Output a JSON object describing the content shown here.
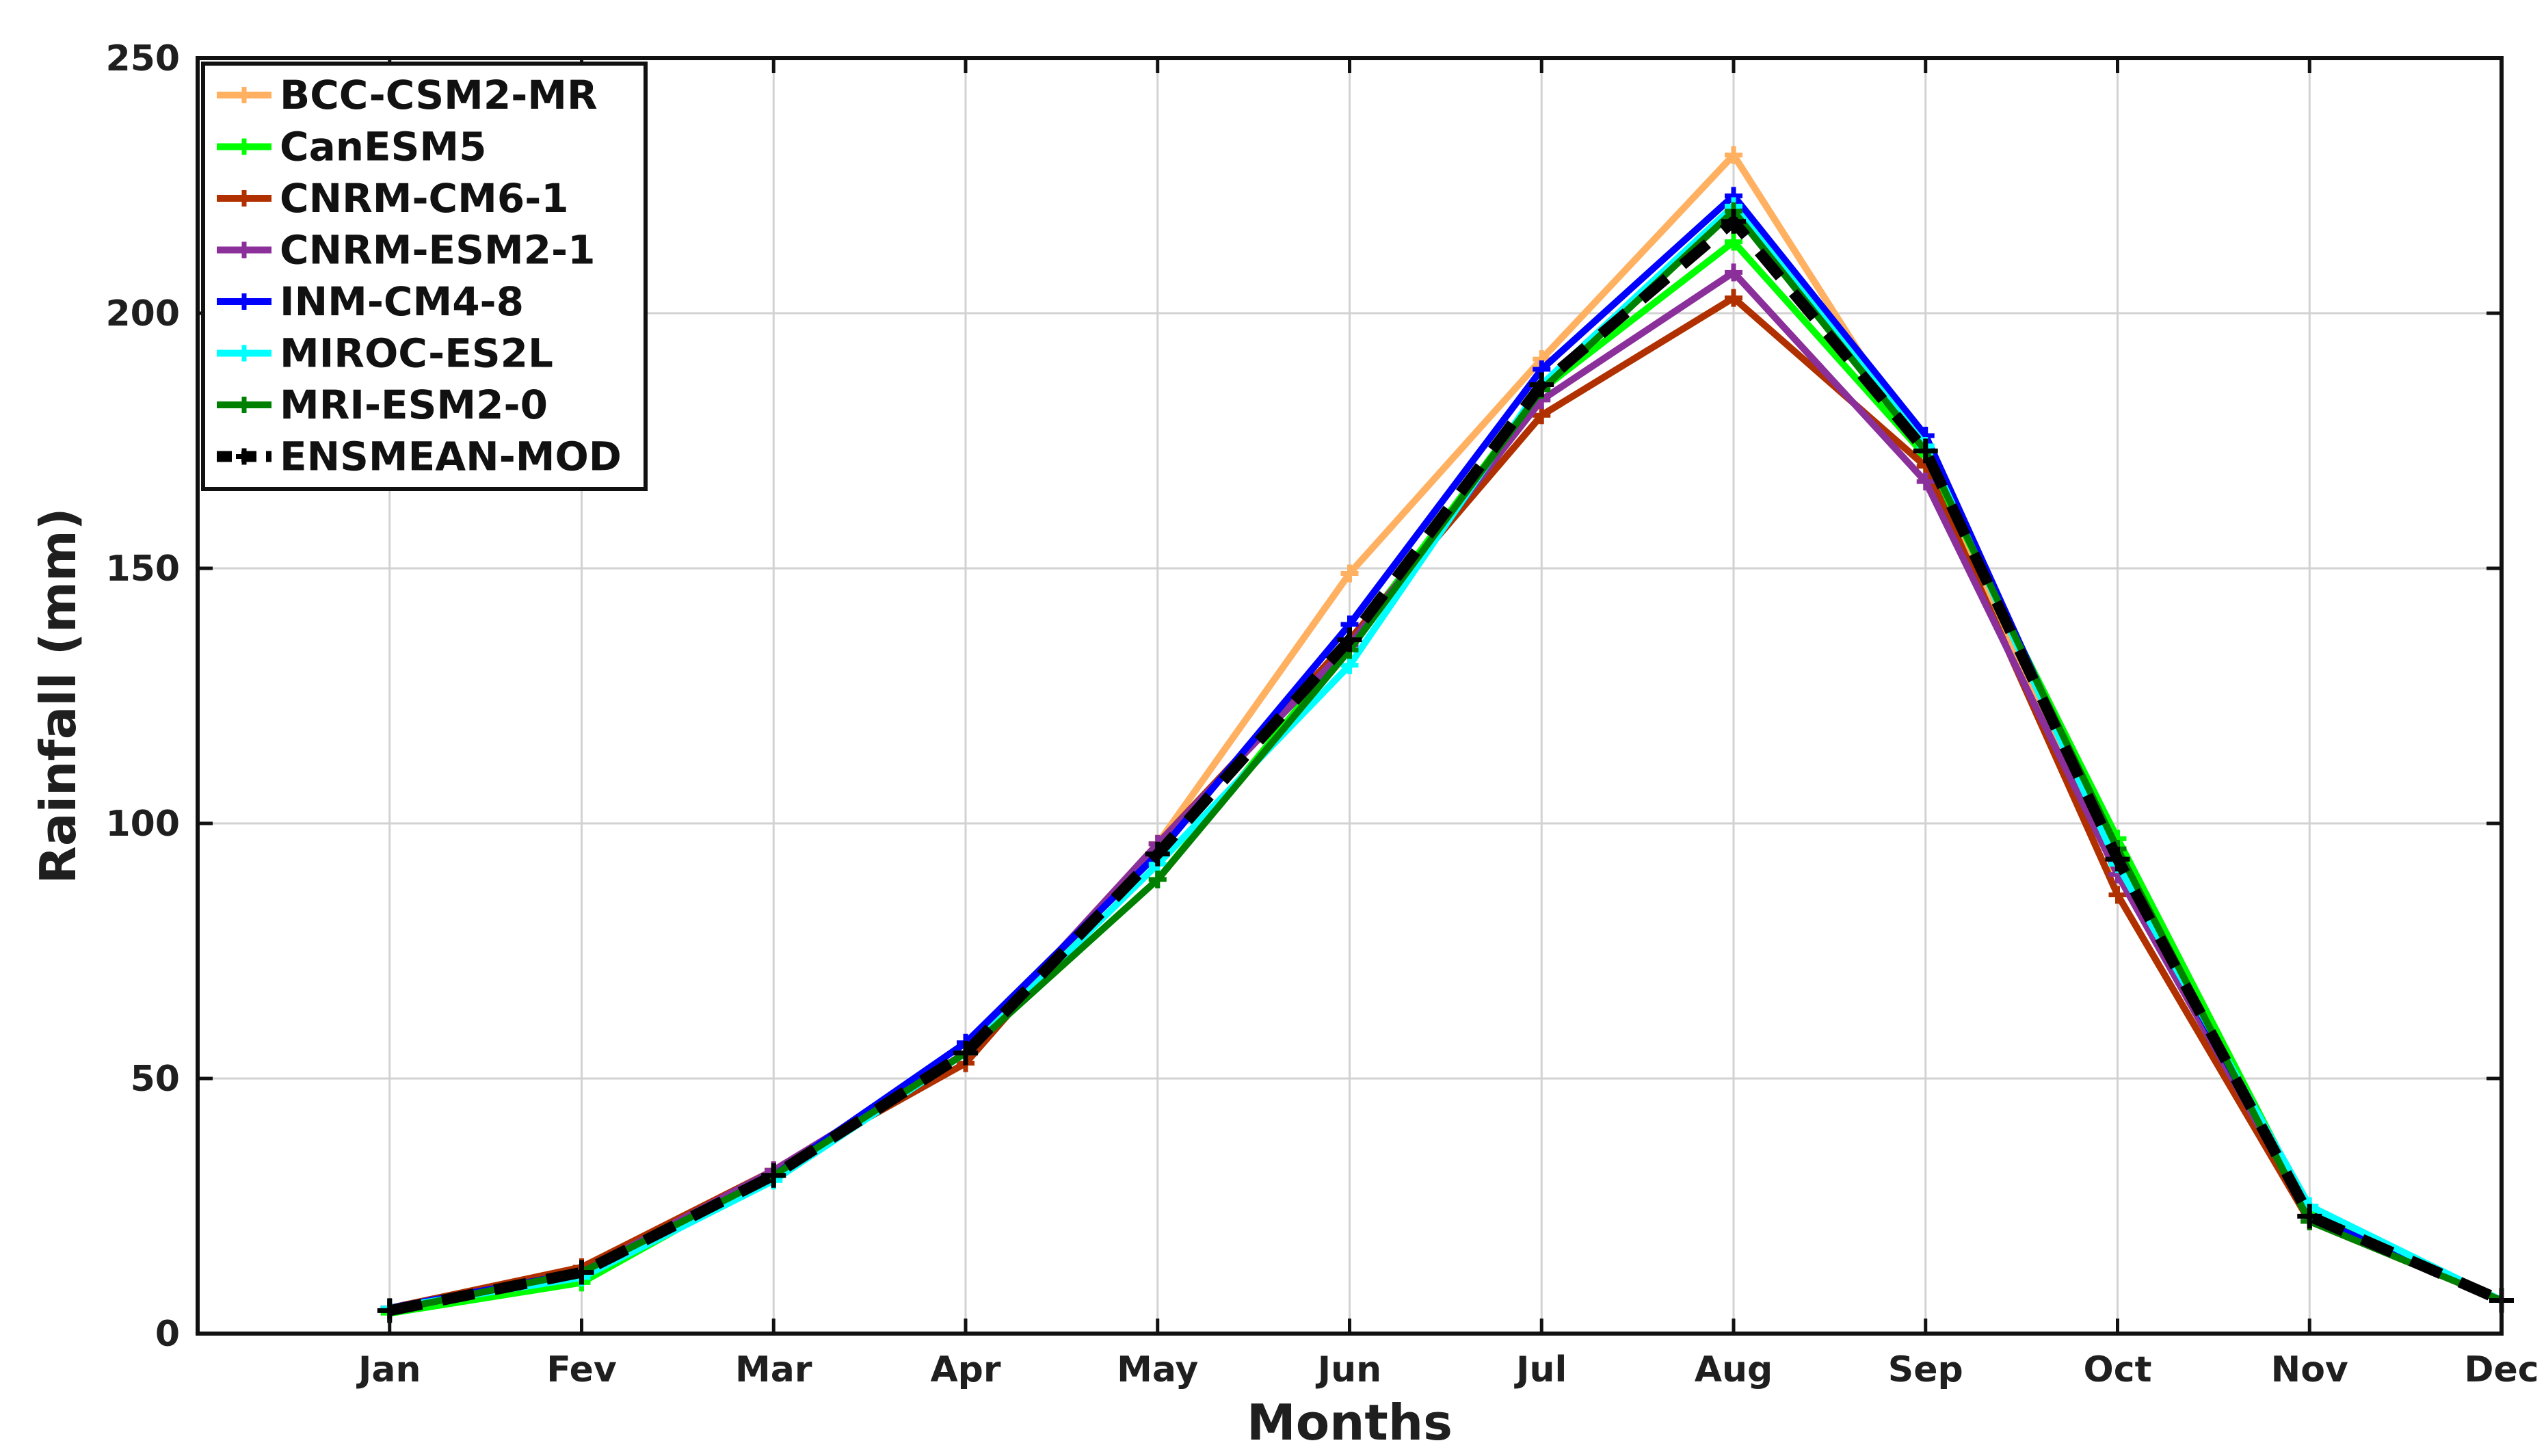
{
  "chart_data": {
    "type": "line",
    "title": "",
    "xlabel": "Months",
    "ylabel": "Rainfall (mm)",
    "categories": [
      "Jan",
      "Fev",
      "Mar",
      "Apr",
      "May",
      "Jun",
      "Jul",
      "Aug",
      "Sep",
      "Oct",
      "Nov",
      "Dec"
    ],
    "x_range": [
      0,
      12
    ],
    "ylim": [
      0,
      250
    ],
    "yticks": [
      0,
      50,
      100,
      150,
      200,
      250
    ],
    "grid": true,
    "legend_position": "top-left",
    "series": [
      {
        "name": "BCC-CSM2-MR",
        "color": "#ffb060",
        "dashed": false,
        "values": [
          4.5,
          13,
          32,
          55,
          96,
          149,
          191,
          231,
          172,
          91,
          23,
          6.5
        ]
      },
      {
        "name": "CanESM5",
        "color": "#00ff00",
        "dashed": false,
        "values": [
          4,
          10,
          31,
          55,
          89,
          135,
          185,
          214,
          172,
          97,
          24,
          6.5
        ]
      },
      {
        "name": "CNRM-CM6-1",
        "color": "#b03000",
        "dashed": false,
        "values": [
          5,
          13,
          32,
          53,
          96,
          136,
          180,
          203,
          170,
          86,
          22,
          6.5
        ]
      },
      {
        "name": "CNRM-ESM2-1",
        "color": "#8b2f9b",
        "dashed": false,
        "values": [
          5,
          12,
          32,
          55,
          96,
          135,
          183,
          208,
          167,
          90,
          23,
          6.5
        ]
      },
      {
        "name": "INM-CM4-8",
        "color": "#0000ff",
        "dashed": false,
        "values": [
          5,
          12,
          31,
          57,
          94,
          139,
          189,
          223,
          176,
          93,
          23,
          6.5
        ]
      },
      {
        "name": "MIROC-ES2L",
        "color": "#00ffff",
        "dashed": false,
        "values": [
          5,
          11,
          30,
          55,
          92,
          131,
          186,
          221,
          174,
          92,
          25,
          6.5
        ]
      },
      {
        "name": "MRI-ESM2-0",
        "color": "#008000",
        "dashed": false,
        "values": [
          4.5,
          12,
          31,
          55,
          89,
          134,
          185,
          220,
          173,
          95,
          22,
          6.5
        ]
      },
      {
        "name": "ENSMEAN-MOD",
        "color": "#000000",
        "dashed": true,
        "values": [
          4.5,
          12,
          31,
          55,
          94,
          136,
          186,
          218,
          173,
          93,
          23,
          6.5
        ]
      }
    ]
  }
}
